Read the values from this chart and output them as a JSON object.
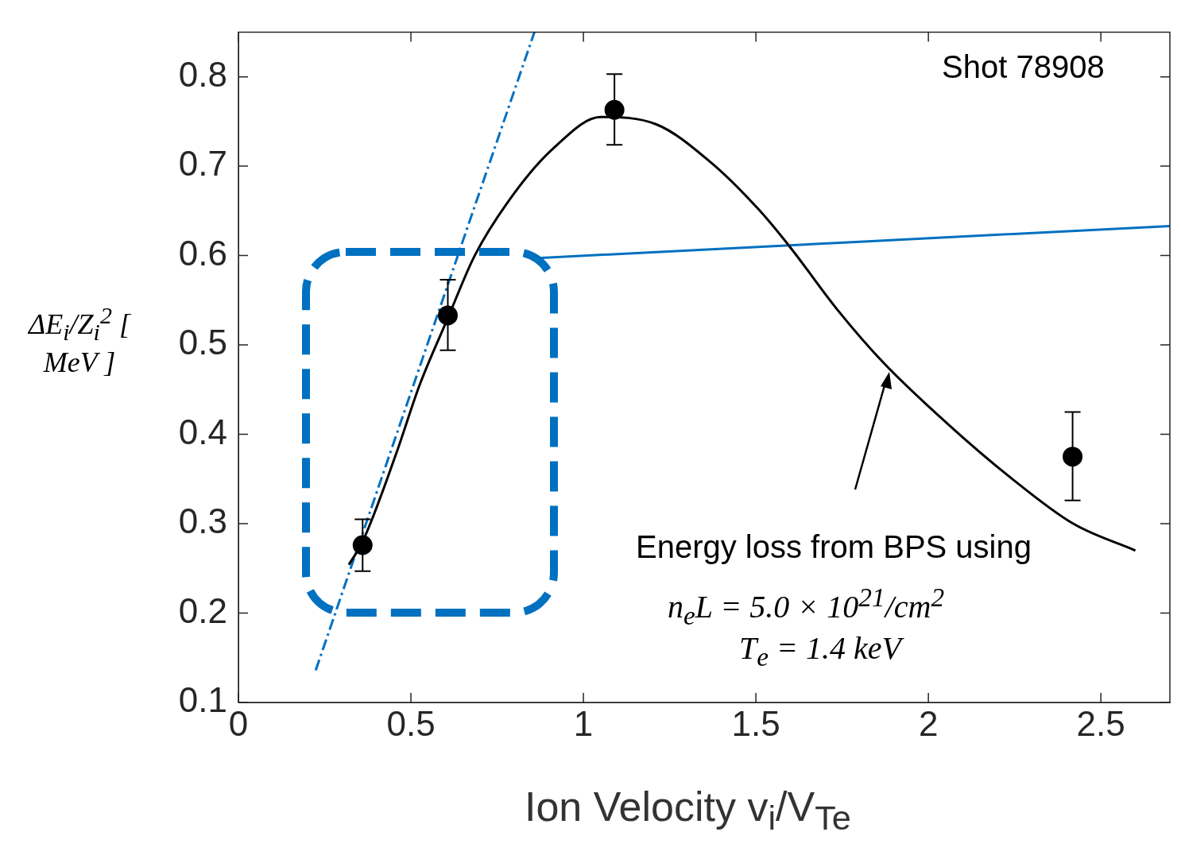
{
  "chart_data": {
    "type": "scatter",
    "xlabel": "Ion Velocity v$_{i}$/V$_{Te}$",
    "ylabel": "ΔE$_{i}$/Z$_{i}$$^{2}$ [ MeV ]",
    "annotations": [
      "Shot 78908",
      "Energy loss from BPS using",
      "n$_{e}$L = 5.0 × 10$^{21}$/cm$^{2}$",
      "T$_{e}$ = 1.4 keV"
    ],
    "xlim": [
      0,
      2.7
    ],
    "ylim": [
      0.1,
      0.85
    ],
    "xticks": [
      0,
      0.5,
      1,
      1.5,
      2,
      2.5
    ],
    "yticks": [
      0.1,
      0.2,
      0.3,
      0.4,
      0.5,
      0.6,
      0.7,
      0.8
    ],
    "series": [
      {
        "color": "#000000",
        "marker": "circle",
        "x": [
          0.36,
          0.607,
          1.09,
          2.418
        ],
        "values": [
          0.276,
          0.533,
          0.763,
          0.375
        ],
        "errors": [
          [
            0.247,
            0.305
          ],
          [
            0.494,
            0.573
          ],
          [
            0.724,
            0.803
          ],
          [
            0.326,
            0.425
          ]
        ]
      },
      {
        "type": "line",
        "color": "#000000",
        "marker": "none",
        "line_style": "solid",
        "x": [
          0.32,
          0.36,
          0.457,
          0.525,
          0.607,
          0.685,
          0.8,
          0.913,
          1.05,
          1.21,
          1.37,
          1.507,
          1.6,
          1.735,
          1.87,
          2.055,
          2.237,
          2.42,
          2.6
        ],
        "values": [
          0.254,
          0.28,
          0.378,
          0.455,
          0.53,
          0.6,
          0.67,
          0.72,
          0.755,
          0.747,
          0.704,
          0.652,
          0.609,
          0.54,
          0.48,
          0.412,
          0.352,
          0.3,
          0.27
        ]
      },
      {
        "type": "line",
        "color": "#0070c0",
        "marker": "none",
        "line_style": "dashed",
        "x": [
          0.224,
          0.858
        ],
        "values": [
          0.136,
          0.85
        ]
      },
      {
        "type": "line",
        "color": "#0070c0",
        "marker": "none",
        "line_style": "solid",
        "x": [
          0.858,
          2.7
        ],
        "values": [
          0.597,
          0.633
        ]
      }
    ]
  }
}
